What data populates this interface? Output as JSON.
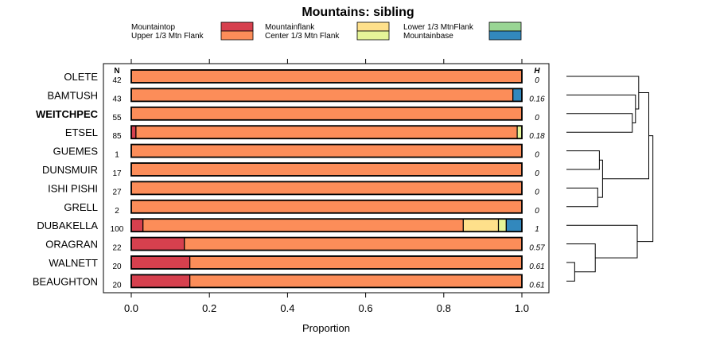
{
  "chart_data": {
    "type": "bar",
    "orientation": "horizontal",
    "stacked": true,
    "title": "Mountains: sibling",
    "xlabel": "Proportion",
    "ylabel": "",
    "xlim": [
      0,
      1
    ],
    "x_ticks": [
      "0.0",
      "0.2",
      "0.4",
      "0.6",
      "0.8",
      "1.0"
    ],
    "n_header": "N",
    "h_header": "H",
    "legend": [
      {
        "name": "Mountaintop",
        "color": "#d6404e"
      },
      {
        "name": "Upper 1/3 Mtn Flank",
        "color": "#fc8d59"
      },
      {
        "name": "Mountainflank",
        "color": "#fee08b"
      },
      {
        "name": "Center 1/3 Mtn Flank",
        "color": "#e6f598"
      },
      {
        "name": "Lower 1/3 MtnFlank",
        "color": "#99d594"
      },
      {
        "name": "Mountainbase",
        "color": "#3288bd"
      }
    ],
    "categories": [
      {
        "label": "OLETE",
        "n": "42",
        "h": "0",
        "bold": false,
        "values": [
          0,
          1.0,
          0,
          0,
          0,
          0
        ]
      },
      {
        "label": "BAMTUSH",
        "n": "43",
        "h": "0.16",
        "bold": false,
        "values": [
          0,
          0.977,
          0,
          0,
          0,
          0.023
        ]
      },
      {
        "label": "WEITCHPEC",
        "n": "55",
        "h": "0",
        "bold": true,
        "values": [
          0,
          1.0,
          0,
          0,
          0,
          0
        ]
      },
      {
        "label": "ETSEL",
        "n": "85",
        "h": "0.18",
        "bold": false,
        "values": [
          0.012,
          0.976,
          0,
          0.012,
          0,
          0
        ]
      },
      {
        "label": "GUEMES",
        "n": "1",
        "h": "0",
        "bold": false,
        "values": [
          0,
          1.0,
          0,
          0,
          0,
          0
        ]
      },
      {
        "label": "DUNSMUIR",
        "n": "17",
        "h": "0",
        "bold": false,
        "values": [
          0,
          1.0,
          0,
          0,
          0,
          0
        ]
      },
      {
        "label": "ISHI PISHI",
        "n": "27",
        "h": "0",
        "bold": false,
        "values": [
          0,
          1.0,
          0,
          0,
          0,
          0
        ]
      },
      {
        "label": "GRELL",
        "n": "2",
        "h": "0",
        "bold": false,
        "values": [
          0,
          1.0,
          0,
          0,
          0,
          0
        ]
      },
      {
        "label": "DUBAKELLA",
        "n": "100",
        "h": "1",
        "bold": false,
        "values": [
          0.03,
          0.82,
          0.09,
          0.02,
          0,
          0.04
        ]
      },
      {
        "label": "ORAGRAN",
        "n": "22",
        "h": "0.57",
        "bold": false,
        "values": [
          0.136,
          0.864,
          0,
          0,
          0,
          0
        ]
      },
      {
        "label": "WALNETT",
        "n": "20",
        "h": "0.61",
        "bold": false,
        "values": [
          0.15,
          0.85,
          0,
          0,
          0,
          0
        ]
      },
      {
        "label": "BEAUGHTON",
        "n": "20",
        "h": "0.61",
        "bold": false,
        "values": [
          0.15,
          0.85,
          0,
          0,
          0,
          0
        ]
      }
    ],
    "dendrogram": {
      "type": "hierarchical-clustering",
      "merges": [
        {
          "id": "m1",
          "a": "WEITCHPEC",
          "b": "ETSEL",
          "height": 0.2
        },
        {
          "id": "m2",
          "a": "BAMTUSH",
          "b": "m1",
          "height": 0.35
        },
        {
          "id": "m3",
          "a": "OLETE",
          "b": "m2",
          "height": 0.4
        },
        {
          "id": "m4",
          "a": "GUEMES",
          "b": "DUNSMUIR",
          "height": 0.6
        },
        {
          "id": "m5",
          "a": "ISHI PISHI",
          "b": "GRELL",
          "height": 0.62
        },
        {
          "id": "m6",
          "a": "WALNETT",
          "b": "BEAUGHTON",
          "height": 0.9
        },
        {
          "id": "m7",
          "a": "ORAGRAN",
          "b": "m6",
          "height": 0.65
        },
        {
          "id": "m8",
          "a": "m4",
          "b": "m5",
          "height": 0.57
        },
        {
          "id": "m9",
          "a": "DUBAKELLA",
          "b": "m7",
          "height": 0.14
        },
        {
          "id": "m10",
          "a": "m3",
          "b": "m8",
          "height": 0.0
        },
        {
          "id": "m11",
          "a": "m10",
          "b": "m9",
          "height": -0.05
        }
      ]
    }
  }
}
